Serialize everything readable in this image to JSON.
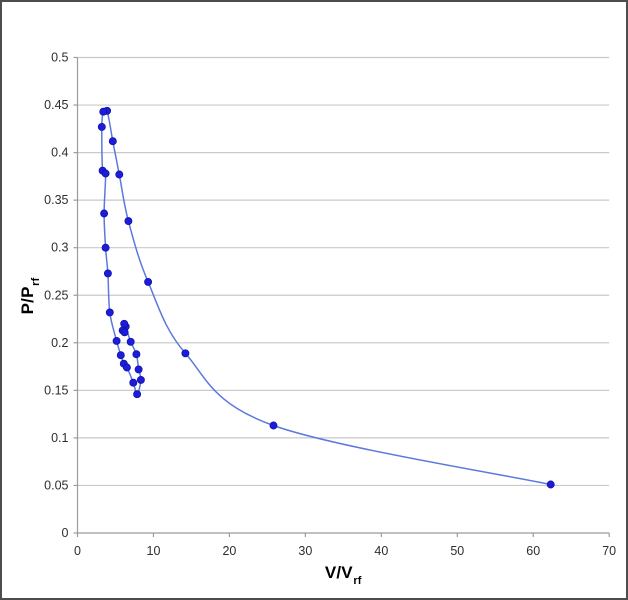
{
  "window": {
    "background": "#ffffff",
    "border_color": "#4d4d4d"
  },
  "chart_data": {
    "type": "scatter",
    "title": "",
    "legend": "none",
    "xlabel_main": "V/V",
    "xlabel_sub": "rf",
    "ylabel_main": "P/P",
    "ylabel_sub": "rf",
    "xlim": [
      0,
      70
    ],
    "ylim": [
      0,
      0.5
    ],
    "grid": "horizontal-only",
    "x_ticks": {
      "values": [
        0,
        10,
        20,
        30,
        40,
        50,
        60,
        70
      ],
      "labels": [
        "0",
        "10",
        "20",
        "30",
        "40",
        "50",
        "60",
        "70"
      ]
    },
    "y_ticks": {
      "values": [
        0,
        0.05,
        0.1,
        0.15,
        0.2,
        0.25,
        0.3,
        0.35,
        0.4,
        0.45,
        0.5
      ],
      "labels": [
        "0",
        "0.05",
        "0.1",
        "0.15",
        "0.2",
        "0.25",
        "0.3",
        "0.35",
        "0.4",
        "0.45",
        "0.5"
      ]
    },
    "marker_color": "#1c1cd9",
    "marker_edge_color": "#0f0fa6",
    "line_color": "#5b79dd",
    "gridline_color": "#c9c9c9",
    "axis_color": "#9b9b9b",
    "tick_label_color": "#2e2e2e",
    "series": [
      {
        "points_in_path_order": [
          [
            62.3,
            0.051
          ],
          [
            25.8,
            0.113
          ],
          [
            14.2,
            0.189
          ],
          [
            9.3,
            0.264
          ],
          [
            6.7,
            0.328
          ],
          [
            5.5,
            0.377
          ],
          [
            4.65,
            0.412
          ],
          [
            3.9,
            0.444
          ],
          [
            3.4,
            0.443
          ],
          [
            3.2,
            0.427
          ],
          [
            3.3,
            0.381
          ],
          [
            3.7,
            0.378
          ],
          [
            3.5,
            0.336
          ],
          [
            3.7,
            0.3
          ],
          [
            4.0,
            0.273
          ],
          [
            4.25,
            0.232
          ],
          [
            5.15,
            0.202
          ],
          [
            5.7,
            0.187
          ],
          [
            6.1,
            0.178
          ],
          [
            6.5,
            0.174
          ],
          [
            7.35,
            0.158
          ],
          [
            7.85,
            0.146
          ],
          [
            8.35,
            0.161
          ],
          [
            8.05,
            0.172
          ],
          [
            7.75,
            0.188
          ],
          [
            7.0,
            0.201
          ],
          [
            6.35,
            0.217
          ],
          [
            6.15,
            0.22
          ],
          [
            5.95,
            0.213
          ],
          [
            6.2,
            0.211
          ]
        ]
      }
    ]
  }
}
